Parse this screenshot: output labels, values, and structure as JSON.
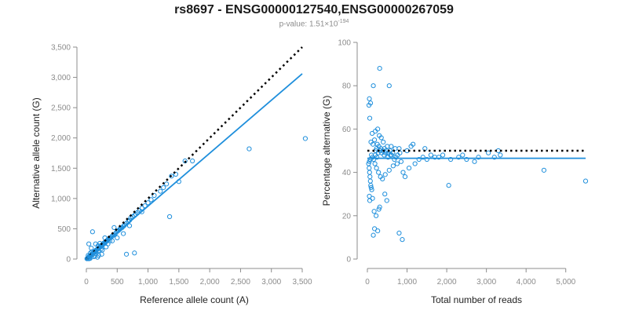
{
  "title": "rs8697 - ENSG00000127540,ENSG00000267059",
  "subtitle": {
    "prefix": "p-value: ",
    "mantissa": "1.51",
    "times": "×",
    "base": "10",
    "exponent": "-194"
  },
  "colors": {
    "point": "#1f8fdc",
    "fit": "#1f8fdc",
    "reference": "#000000",
    "axis": "#8c8c8c"
  },
  "chart_data": [
    {
      "type": "scatter",
      "name": "allele-counts",
      "xlabel": "Reference allele count (A)",
      "ylabel": "Alternative allele count (G)",
      "xlim": [
        0,
        3500
      ],
      "ylim": [
        0,
        3500
      ],
      "xticks": [
        0,
        500,
        1000,
        1500,
        2000,
        2500,
        3000,
        3500
      ],
      "xtick_labels": [
        "0",
        "500",
        "1,000",
        "1,500",
        "2,000",
        "2,500",
        "3,000",
        "3,500"
      ],
      "yticks": [
        0,
        500,
        1000,
        1500,
        2000,
        2500,
        3000,
        3500
      ],
      "ytick_labels": [
        "0",
        "500",
        "1,000",
        "1,500",
        "2,000",
        "2,500",
        "3,000",
        "3,500"
      ],
      "reference_line": {
        "style": "dotted",
        "x": [
          0,
          3500
        ],
        "y": [
          0,
          3500
        ]
      },
      "fit_line": {
        "style": "solid",
        "x": [
          0,
          3500
        ],
        "y": [
          0,
          3060
        ]
      },
      "points": [
        [
          20,
          15
        ],
        [
          35,
          30
        ],
        [
          50,
          40
        ],
        [
          60,
          55
        ],
        [
          70,
          60
        ],
        [
          80,
          70
        ],
        [
          95,
          85
        ],
        [
          110,
          95
        ],
        [
          120,
          110
        ],
        [
          130,
          115
        ],
        [
          140,
          130
        ],
        [
          150,
          120
        ],
        [
          160,
          150
        ],
        [
          170,
          155
        ],
        [
          180,
          160
        ],
        [
          190,
          175
        ],
        [
          200,
          180
        ],
        [
          210,
          190
        ],
        [
          220,
          200
        ],
        [
          230,
          210
        ],
        [
          240,
          205
        ],
        [
          250,
          230
        ],
        [
          260,
          240
        ],
        [
          270,
          250
        ],
        [
          280,
          255
        ],
        [
          290,
          270
        ],
        [
          300,
          260
        ],
        [
          310,
          280
        ],
        [
          320,
          290
        ],
        [
          330,
          300
        ],
        [
          340,
          310
        ],
        [
          350,
          320
        ],
        [
          360,
          325
        ],
        [
          370,
          340
        ],
        [
          380,
          345
        ],
        [
          400,
          360
        ],
        [
          420,
          380
        ],
        [
          440,
          395
        ],
        [
          460,
          410
        ],
        [
          480,
          430
        ],
        [
          500,
          460
        ],
        [
          520,
          470
        ],
        [
          540,
          490
        ],
        [
          560,
          510
        ],
        [
          580,
          520
        ],
        [
          600,
          540
        ],
        [
          620,
          560
        ],
        [
          650,
          590
        ],
        [
          680,
          620
        ],
        [
          700,
          640
        ],
        [
          720,
          680
        ],
        [
          750,
          700
        ],
        [
          780,
          720
        ],
        [
          800,
          740
        ],
        [
          830,
          770
        ],
        [
          860,
          800
        ],
        [
          900,
          840
        ],
        [
          950,
          880
        ],
        [
          1000,
          930
        ],
        [
          1050,
          980
        ],
        [
          1100,
          1050
        ],
        [
          1200,
          1120
        ],
        [
          1250,
          1180
        ],
        [
          1300,
          1240
        ],
        [
          1380,
          1370
        ],
        [
          1450,
          1400
        ],
        [
          1500,
          1280
        ],
        [
          1600,
          1620
        ],
        [
          1720,
          1620
        ],
        [
          1350,
          700
        ],
        [
          2640,
          1820
        ],
        [
          3550,
          1990
        ],
        [
          780,
          100
        ],
        [
          650,
          80
        ],
        [
          100,
          450
        ],
        [
          150,
          250
        ],
        [
          200,
          60
        ],
        [
          250,
          80
        ],
        [
          300,
          350
        ],
        [
          120,
          40
        ],
        [
          60,
          10
        ],
        [
          40,
          5
        ],
        [
          90,
          120
        ],
        [
          180,
          30
        ],
        [
          220,
          260
        ],
        [
          260,
          150
        ],
        [
          350,
          250
        ],
        [
          420,
          300
        ],
        [
          500,
          350
        ],
        [
          600,
          420
        ],
        [
          40,
          250
        ],
        [
          80,
          180
        ],
        [
          160,
          90
        ],
        [
          30,
          60
        ],
        [
          55,
          20
        ],
        [
          65,
          100
        ],
        [
          140,
          50
        ],
        [
          190,
          220
        ],
        [
          240,
          170
        ],
        [
          320,
          200
        ],
        [
          450,
          520
        ],
        [
          550,
          500
        ],
        [
          700,
          550
        ],
        [
          900,
          780
        ],
        [
          380,
          300
        ],
        [
          200,
          140
        ],
        [
          100,
          70
        ],
        [
          50,
          50
        ],
        [
          15,
          10
        ],
        [
          10,
          5
        ]
      ]
    },
    {
      "type": "scatter",
      "name": "percentage-alternative",
      "xlabel": "Total number of reads",
      "ylabel": "Percentage alternative (G)",
      "xlim": [
        0,
        5500
      ],
      "ylim": [
        0,
        100
      ],
      "xticks": [
        0,
        1000,
        2000,
        3000,
        4000,
        5000
      ],
      "xtick_labels": [
        "0",
        "1,000",
        "2,000",
        "3,000",
        "4,000",
        "5,000"
      ],
      "yticks": [
        0,
        20,
        40,
        60,
        80,
        100
      ],
      "ytick_labels": [
        "0",
        "20",
        "40",
        "60",
        "80",
        "100"
      ],
      "reference_line": {
        "style": "dotted",
        "x": [
          0,
          5500
        ],
        "y": [
          50,
          50
        ]
      },
      "fit_line": {
        "style": "solid",
        "x": [
          0,
          5500
        ],
        "y": [
          46.5,
          46.5
        ]
      },
      "points": [
        [
          310,
          88
        ],
        [
          550,
          80
        ],
        [
          150,
          80
        ],
        [
          50,
          74
        ],
        [
          80,
          72
        ],
        [
          40,
          71
        ],
        [
          60,
          65
        ],
        [
          260,
          60
        ],
        [
          200,
          59
        ],
        [
          120,
          58
        ],
        [
          300,
          57
        ],
        [
          350,
          56
        ],
        [
          180,
          55
        ],
        [
          90,
          54
        ],
        [
          400,
          54
        ],
        [
          250,
          53
        ],
        [
          140,
          53
        ],
        [
          500,
          52
        ],
        [
          600,
          52
        ],
        [
          700,
          51
        ],
        [
          800,
          51
        ],
        [
          1000,
          50
        ],
        [
          1100,
          52
        ],
        [
          1150,
          53
        ],
        [
          1450,
          51
        ],
        [
          1600,
          48
        ],
        [
          1800,
          47
        ],
        [
          1900,
          48
        ],
        [
          2100,
          46
        ],
        [
          2300,
          47
        ],
        [
          2400,
          48
        ],
        [
          2800,
          47
        ],
        [
          3050,
          49
        ],
        [
          3300,
          50
        ],
        [
          3350,
          48
        ],
        [
          4450,
          41
        ],
        [
          5500,
          36
        ],
        [
          2050,
          34
        ],
        [
          1200,
          44
        ],
        [
          1050,
          42
        ],
        [
          900,
          40
        ],
        [
          950,
          38
        ],
        [
          850,
          45
        ],
        [
          750,
          44
        ],
        [
          650,
          43
        ],
        [
          550,
          41
        ],
        [
          450,
          39
        ],
        [
          380,
          37
        ],
        [
          330,
          38
        ],
        [
          280,
          40
        ],
        [
          230,
          42
        ],
        [
          190,
          44
        ],
        [
          160,
          46
        ],
        [
          130,
          47
        ],
        [
          100,
          48
        ],
        [
          70,
          46
        ],
        [
          50,
          45
        ],
        [
          30,
          44
        ],
        [
          45,
          42
        ],
        [
          55,
          40
        ],
        [
          65,
          38
        ],
        [
          75,
          36
        ],
        [
          85,
          34
        ],
        [
          95,
          33
        ],
        [
          110,
          32
        ],
        [
          130,
          28
        ],
        [
          170,
          22
        ],
        [
          220,
          20
        ],
        [
          260,
          13
        ],
        [
          290,
          23
        ],
        [
          310,
          24
        ],
        [
          800,
          12
        ],
        [
          880,
          9
        ],
        [
          490,
          27
        ],
        [
          440,
          30
        ],
        [
          150,
          11
        ],
        [
          180,
          14
        ],
        [
          60,
          27
        ],
        [
          50,
          29
        ],
        [
          200,
          48
        ],
        [
          240,
          47
        ],
        [
          270,
          49
        ],
        [
          320,
          50
        ],
        [
          360,
          49
        ],
        [
          420,
          48
        ],
        [
          460,
          49
        ],
        [
          520,
          47
        ],
        [
          580,
          48
        ],
        [
          640,
          49
        ],
        [
          680,
          46
        ],
        [
          720,
          47
        ],
        [
          760,
          48
        ],
        [
          820,
          49
        ],
        [
          1300,
          46
        ],
        [
          1400,
          47
        ],
        [
          1500,
          46
        ],
        [
          1700,
          47
        ],
        [
          2500,
          46
        ],
        [
          2700,
          45
        ],
        [
          3200,
          47
        ],
        [
          210,
          50
        ],
        [
          230,
          51
        ],
        [
          290,
          52
        ],
        [
          340,
          51
        ],
        [
          390,
          50
        ],
        [
          430,
          51
        ],
        [
          480,
          50
        ],
        [
          530,
          49
        ],
        [
          570,
          50
        ],
        [
          610,
          48
        ]
      ]
    }
  ]
}
